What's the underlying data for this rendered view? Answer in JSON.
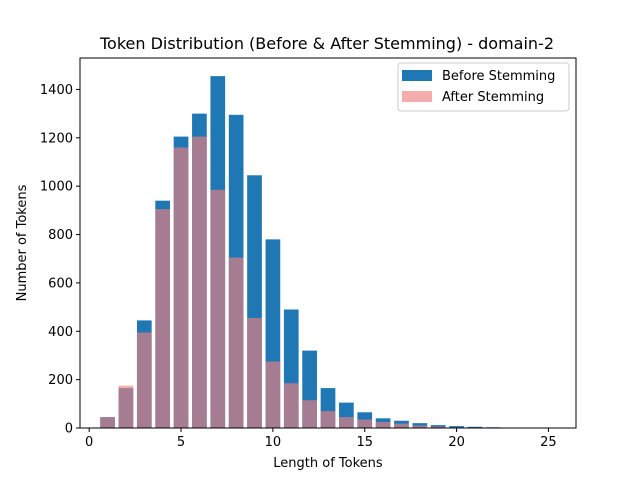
{
  "chart_data": {
    "type": "bar",
    "title": "Token Distribution (Before & After Stemming) - domain-2",
    "xlabel": "Length of Tokens",
    "ylabel": "Number of Tokens",
    "xlim": [
      -0.5,
      26.5
    ],
    "ylim": [
      0,
      1530
    ],
    "xticks": [
      0,
      5,
      10,
      15,
      20,
      25
    ],
    "yticks": [
      0,
      200,
      400,
      600,
      800,
      1000,
      1200,
      1400
    ],
    "legend_position": "top-right",
    "x": [
      1,
      2,
      3,
      4,
      5,
      6,
      7,
      8,
      9,
      10,
      11,
      12,
      13,
      14,
      15,
      16,
      17,
      18,
      19,
      20,
      21,
      22,
      23,
      24,
      25
    ],
    "series": [
      {
        "name": "Before Stemming",
        "color": "#1f77b4",
        "opacity": 1,
        "values": [
          45,
          165,
          445,
          940,
          1205,
          1300,
          1455,
          1295,
          1045,
          780,
          490,
          320,
          165,
          105,
          65,
          40,
          30,
          20,
          12,
          8,
          5,
          3,
          2,
          1,
          1
        ]
      },
      {
        "name": "After Stemming",
        "color": "#f08080",
        "opacity": 0.65,
        "values": [
          45,
          175,
          395,
          905,
          1160,
          1205,
          985,
          705,
          455,
          275,
          185,
          115,
          70,
          45,
          35,
          25,
          18,
          10,
          6,
          3,
          2,
          1,
          1,
          0,
          0
        ]
      }
    ]
  }
}
